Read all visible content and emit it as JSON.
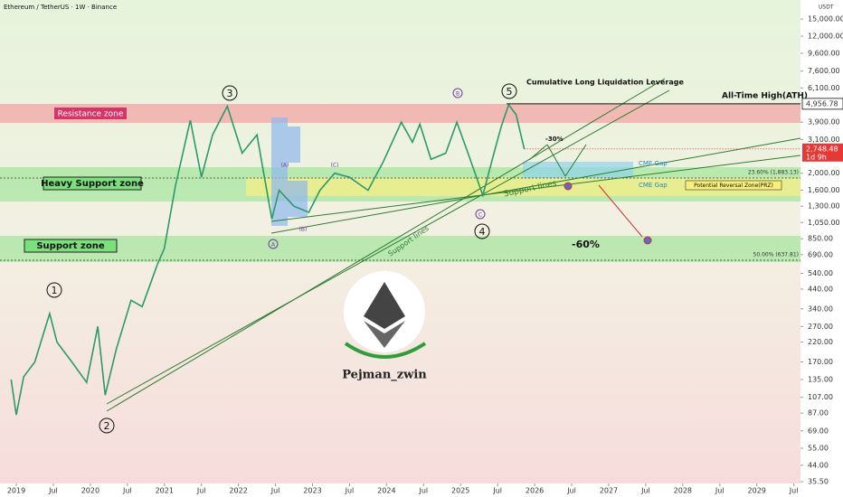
{
  "chart_data": {
    "type": "line",
    "title": "Ethereum / TetherUS · 1W · Binance",
    "y_axis_label": "USDT",
    "log_scale": true,
    "color": "#2b9a6b",
    "x": [
      2018.93,
      2019.0,
      2019.1,
      2019.25,
      2019.45,
      2019.55,
      2019.75,
      2019.95,
      2020.1,
      2020.2,
      2020.35,
      2020.55,
      2020.7,
      2020.9,
      2021.0,
      2021.15,
      2021.35,
      2021.5,
      2021.65,
      2021.85,
      2022.05,
      2022.25,
      2022.45,
      2022.55,
      2022.75,
      2022.95,
      2023.1,
      2023.3,
      2023.5,
      2023.75,
      2023.95,
      2024.2,
      2024.35,
      2024.45,
      2024.6,
      2024.8,
      2024.95,
      2025.1,
      2025.3,
      2025.45,
      2025.55,
      2025.65,
      2025.75,
      2025.86
    ],
    "values": [
      135,
      85,
      140,
      170,
      320,
      220,
      170,
      130,
      270,
      110,
      200,
      380,
      350,
      600,
      750,
      1700,
      4000,
      1900,
      3300,
      4800,
      2600,
      3300,
      1100,
      1600,
      1300,
      1200,
      1600,
      2000,
      1900,
      1600,
      2300,
      3900,
      3000,
      3800,
      2400,
      2600,
      3900,
      2600,
      1500,
      2600,
      3700,
      4900,
      4300,
      2748.48
    ],
    "xlim": [
      2018.78,
      2029.59
    ],
    "ylim": [
      34.7,
      19250
    ],
    "xticks": [
      {
        "value": 2019,
        "label": "2019"
      },
      {
        "value": 2019.5,
        "label": "Jul"
      },
      {
        "value": 2020,
        "label": "2020"
      },
      {
        "value": 2020.5,
        "label": "Jul"
      },
      {
        "value": 2021,
        "label": "2021"
      },
      {
        "value": 2021.5,
        "label": "Jul"
      },
      {
        "value": 2022,
        "label": "2022"
      },
      {
        "value": 2022.5,
        "label": "Jul"
      },
      {
        "value": 2023,
        "label": "2023"
      },
      {
        "value": 2023.5,
        "label": "Jul"
      },
      {
        "value": 2024,
        "label": "2024"
      },
      {
        "value": 2024.5,
        "label": "Jul"
      },
      {
        "value": 2025,
        "label": "2025"
      },
      {
        "value": 2025.5,
        "label": "Jul"
      },
      {
        "value": 2026,
        "label": "2026"
      },
      {
        "value": 2026.5,
        "label": "Jul"
      },
      {
        "value": 2027,
        "label": "2027"
      },
      {
        "value": 2027.5,
        "label": "Jul"
      },
      {
        "value": 2028,
        "label": "2028"
      },
      {
        "value": 2028.5,
        "label": "Jul"
      },
      {
        "value": 2029,
        "label": "2029"
      },
      {
        "value": 2029.5,
        "label": "Jul"
      }
    ],
    "yticks": [
      {
        "value": 15000,
        "label": "15,000.00"
      },
      {
        "value": 12000,
        "label": "12,000.00"
      },
      {
        "value": 9600,
        "label": "9,600.00"
      },
      {
        "value": 7600,
        "label": "7,600.00"
      },
      {
        "value": 6100,
        "label": "6,100.00"
      },
      {
        "value": 3900,
        "label": "3,900.00"
      },
      {
        "value": 3100,
        "label": "3,100.00"
      },
      {
        "value": 2000,
        "label": "2,000.00"
      },
      {
        "value": 1600,
        "label": "1,600.00"
      },
      {
        "value": 1300,
        "label": "1,300.00"
      },
      {
        "value": 1050,
        "label": "1,050.00"
      },
      {
        "value": 850,
        "label": "850.00"
      },
      {
        "value": 690,
        "label": "690.00"
      },
      {
        "value": 540,
        "label": "540.00"
      },
      {
        "value": 440,
        "label": "440.00"
      },
      {
        "value": 340,
        "label": "340.00"
      },
      {
        "value": 270,
        "label": "270.00"
      },
      {
        "value": 220,
        "label": "220.00"
      },
      {
        "value": 170,
        "label": "170.00"
      },
      {
        "value": 135,
        "label": "135.00"
      },
      {
        "value": 107,
        "label": "107.00"
      },
      {
        "value": 87,
        "label": "87.00"
      },
      {
        "value": 69,
        "label": "69.00"
      },
      {
        "value": 55,
        "label": "55.00"
      },
      {
        "value": 44,
        "label": "44.00"
      },
      {
        "value": 35.5,
        "label": "35.50"
      }
    ],
    "ath_price": {
      "value": 4956.78,
      "label": "4,956.78"
    },
    "last_price": {
      "value": 2748.48,
      "label": "2,748.48"
    },
    "countdown": "1d 9h",
    "annotations": {
      "resistance": "Resistance zone",
      "heavy_support": "Heavy Support zone",
      "support": "Support zone",
      "liquidation": "Cumulative Long Liquidation Leverage",
      "ath": "All-Time High(ATH)",
      "support_lines_1": "Support lines",
      "support_lines_2": "Support lines",
      "cme_gap_1": "CME Gap",
      "cme_gap_2": "CME Gap",
      "prz": "Potential Reversal Zone(PRZ)",
      "fib_236": "23.60% (1,883.13)",
      "fib_50": "50.00% (637.81)",
      "drop_60": "-60%",
      "drop_30": "-30%",
      "author": "Pejman_zwin",
      "wave_1": "1",
      "wave_2": "2",
      "wave_3": "3",
      "wave_4": "4",
      "wave_5": "5",
      "wave_A": "A",
      "wave_B": "B",
      "wave_C": "C",
      "sub_A": "(A)",
      "sub_B": "(B)",
      "sub_C": "(C)"
    }
  }
}
